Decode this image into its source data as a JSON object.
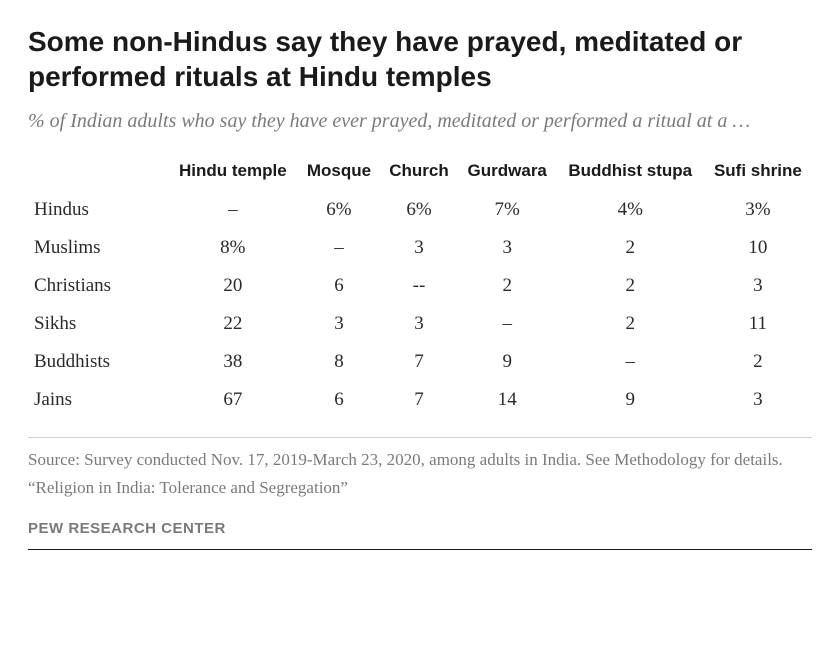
{
  "title": "Some non-Hindus say they have prayed, meditated or performed rituals at Hindu temples",
  "subtitle": "% of Indian adults who say they have ever prayed, meditated or performed a ritual at a …",
  "table": {
    "columns": [
      "",
      "Hindu temple",
      "Mosque",
      "Church",
      "Gurdwara",
      "Buddhist stupa",
      "Sufi shrine"
    ],
    "rows": [
      {
        "label": "Hindus",
        "cells": [
          "–",
          "6%",
          "6%",
          "7%",
          "4%",
          "3%"
        ]
      },
      {
        "label": "Muslims",
        "cells": [
          "8%",
          "–",
          "3",
          "3",
          "2",
          "10"
        ]
      },
      {
        "label": "Christians",
        "cells": [
          "20",
          "6",
          "--",
          "2",
          "2",
          "3"
        ]
      },
      {
        "label": "Sikhs",
        "cells": [
          "22",
          "3",
          "3",
          "–",
          "2",
          "11"
        ]
      },
      {
        "label": "Buddhists",
        "cells": [
          "38",
          "8",
          "7",
          "9",
          "–",
          "2"
        ]
      },
      {
        "label": "Jains",
        "cells": [
          "67",
          "6",
          "7",
          "14",
          "9",
          "3"
        ]
      }
    ]
  },
  "source": "Source: Survey conducted Nov. 17, 2019-March 23, 2020, among adults in India. See Methodology for details.",
  "quote": "“Religion in India: Tolerance and Segregation”",
  "attribution": "PEW RESEARCH CENTER",
  "colors": {
    "text_primary": "#1a1a1a",
    "text_body": "#2a2a2a",
    "text_muted": "#7a7a7a",
    "border_light": "#d0d0d0",
    "border_dark": "#1a1a1a",
    "background": "#ffffff"
  },
  "typography": {
    "title_fontsize": 28,
    "subtitle_fontsize": 20,
    "header_fontsize": 17,
    "cell_fontsize": 19,
    "footer_fontsize": 17,
    "attribution_fontsize": 15
  }
}
